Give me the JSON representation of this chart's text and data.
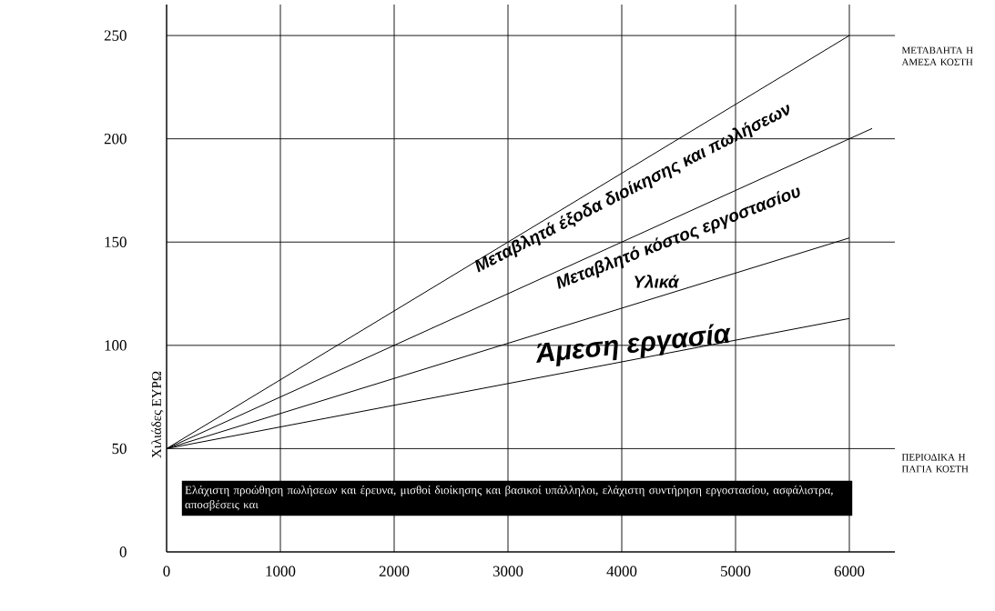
{
  "chart_data": {
    "type": "line",
    "ylabel": "Χιλιάδες ΕΥΡΩ",
    "xlim": [
      0,
      6400
    ],
    "ylim": [
      0,
      265
    ],
    "xticks": [
      0,
      1000,
      2000,
      3000,
      4000,
      5000,
      6000
    ],
    "yticks": [
      0,
      50,
      100,
      150,
      200,
      250
    ],
    "grid": true,
    "marker": "none",
    "line_style": "solid",
    "series": [
      {
        "color": "#000000",
        "x": [
          0,
          6000
        ],
        "values": [
          50,
          250
        ]
      },
      {
        "color": "#000000",
        "x": [
          0,
          6200
        ],
        "values": [
          50,
          205
        ]
      },
      {
        "color": "#000000",
        "x": [
          0,
          6000
        ],
        "values": [
          50,
          152
        ]
      },
      {
        "color": "#000000",
        "x": [
          0,
          6000
        ],
        "values": [
          50,
          113
        ]
      }
    ],
    "annotations": [
      "Μεταβλητά έξοδα διοίκησης και πωλήσεων",
      "Μεταβλητό κόστος εργοστασίου",
      "Υλικά",
      "Άμεση εργασία",
      "Ελάχιστη προώθηση πωλήσεων και έρευνα, μισθοί διοίκησης και βασικοί υπάλληλοι, ελάχιστη συντήρηση εργοστασίου, ασφάλιστρα, αποσβέσεις και",
      "ΜΕΤΑΒΛΗΤΑ Η ΑΜΕΣΑ ΚΟΣΤΗ",
      "ΠΕΡΙΟΔΙΚΑ Η ΠΑΓΙΑ ΚΟΣΤΗ"
    ]
  }
}
